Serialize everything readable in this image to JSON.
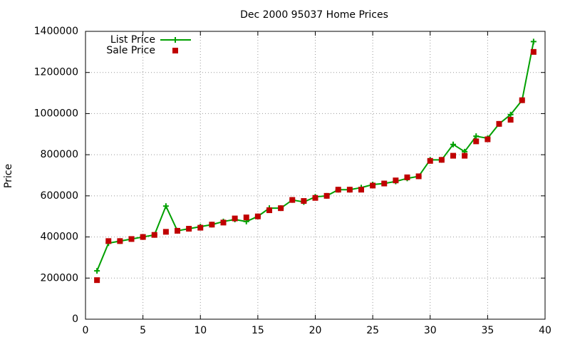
{
  "chart_data": {
    "type": "linespoints",
    "title": "Dec 2000 95037 Home Prices",
    "y_label": "Price",
    "x": [
      1,
      2,
      3,
      4,
      5,
      6,
      7,
      8,
      9,
      10,
      11,
      12,
      13,
      14,
      15,
      16,
      17,
      18,
      19,
      20,
      21,
      22,
      23,
      24,
      25,
      26,
      27,
      28,
      29,
      30,
      31,
      32,
      33,
      34,
      35,
      36,
      37,
      38,
      39
    ],
    "series": [
      {
        "name": "List Price",
        "color": "#00a000",
        "style": "linespoints",
        "values": [
          235000,
          370000,
          380000,
          390000,
          400000,
          410000,
          550000,
          430000,
          440000,
          450000,
          460000,
          475000,
          485000,
          475000,
          500000,
          540000,
          540000,
          580000,
          570000,
          595000,
          600000,
          630000,
          630000,
          640000,
          655000,
          660000,
          670000,
          685000,
          695000,
          775000,
          775000,
          850000,
          815000,
          890000,
          880000,
          950000,
          995000,
          1065000,
          1350000
        ]
      },
      {
        "name": "Sale Price",
        "color": "#c00000",
        "style": "points",
        "values": [
          190000,
          380000,
          380000,
          390000,
          400000,
          410000,
          425000,
          430000,
          440000,
          445000,
          460000,
          470000,
          490000,
          495000,
          500000,
          530000,
          540000,
          580000,
          575000,
          590000,
          600000,
          630000,
          630000,
          630000,
          650000,
          660000,
          675000,
          690000,
          695000,
          770000,
          775000,
          795000,
          795000,
          865000,
          875000,
          950000,
          970000,
          1065000,
          1300000
        ]
      }
    ],
    "xlim": [
      0,
      40
    ],
    "xticks": [
      0,
      5,
      10,
      15,
      20,
      25,
      30,
      35,
      40
    ],
    "ylim": [
      0,
      1400000
    ],
    "yticks": [
      0,
      200000,
      400000,
      600000,
      800000,
      1000000,
      1200000,
      1400000
    ],
    "grid": true,
    "legend": "top-left"
  }
}
